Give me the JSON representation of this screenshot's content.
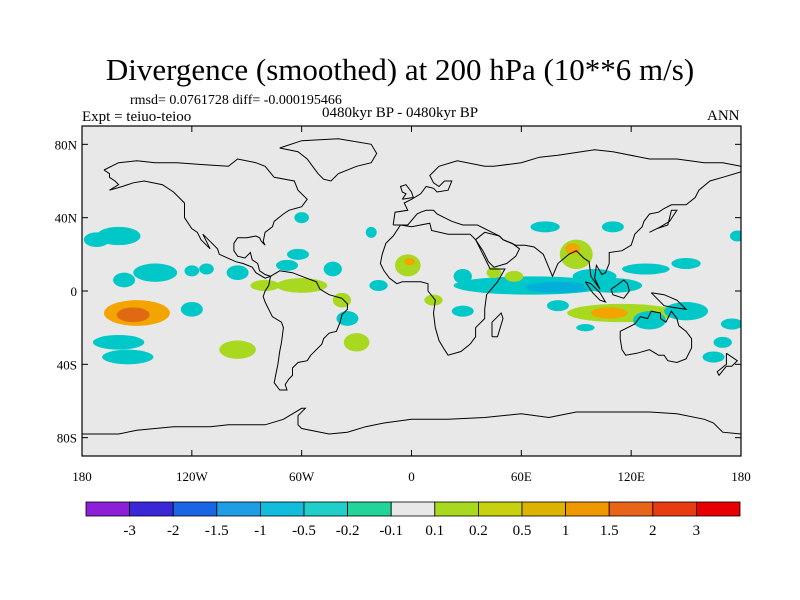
{
  "header": {
    "title": "Divergence (smoothed) at 200 hPa (10**6 m/s)",
    "stats": "rmsd= 0.0761728 diff= -0.000195466",
    "experiment": "Expt = teiuo-teioo",
    "period": "0480kyr BP - 0480kyr BP",
    "season": "ANN"
  },
  "map": {
    "background": "#e8e8e8",
    "coastline_color": "#000000",
    "lat_labels": [
      "80N",
      "40N",
      "0",
      "40S",
      "80S"
    ],
    "lon_labels": [
      "180",
      "120W",
      "60W",
      "0",
      "60E",
      "120E",
      "180"
    ],
    "features": [
      {
        "name": "north-america"
      },
      {
        "name": "south-america"
      },
      {
        "name": "greenland"
      },
      {
        "name": "africa"
      },
      {
        "name": "eurasia"
      },
      {
        "name": "australia"
      },
      {
        "name": "antarctica"
      },
      {
        "name": "madagascar"
      },
      {
        "name": "arabia"
      }
    ],
    "anomalies": [
      {
        "lon": -150,
        "lat": -12,
        "rx": 18,
        "ry": 7,
        "color": "#f4a400"
      },
      {
        "lon": -152,
        "lat": -13,
        "rx": 9,
        "ry": 4,
        "color": "#e06a14"
      },
      {
        "lon": -160,
        "lat": 30,
        "rx": 12,
        "ry": 5,
        "color": "#00c8c8"
      },
      {
        "lon": -172,
        "lat": 28,
        "rx": 7,
        "ry": 4,
        "color": "#00c8c8"
      },
      {
        "lon": -140,
        "lat": 10,
        "rx": 12,
        "ry": 5,
        "color": "#00c8c8"
      },
      {
        "lon": -157,
        "lat": 6,
        "rx": 6,
        "ry": 4,
        "color": "#00c8c8"
      },
      {
        "lon": -160,
        "lat": -28,
        "rx": 14,
        "ry": 4,
        "color": "#00c8c8"
      },
      {
        "lon": -155,
        "lat": -36,
        "rx": 14,
        "ry": 4,
        "color": "#00c8c8"
      },
      {
        "lon": -120,
        "lat": 11,
        "rx": 4,
        "ry": 3,
        "color": "#00c8c8"
      },
      {
        "lon": -112,
        "lat": 12,
        "rx": 4,
        "ry": 3,
        "color": "#00c8c8"
      },
      {
        "lon": -120,
        "lat": -10,
        "rx": 6,
        "ry": 4,
        "color": "#00c8c8"
      },
      {
        "lon": -95,
        "lat": -32,
        "rx": 10,
        "ry": 5,
        "color": "#a8d820"
      },
      {
        "lon": -95,
        "lat": 10,
        "rx": 6,
        "ry": 4,
        "color": "#00c8c8"
      },
      {
        "lon": -80,
        "lat": 3,
        "rx": 8,
        "ry": 3,
        "color": "#a8d820"
      },
      {
        "lon": -60,
        "lat": 3,
        "rx": 14,
        "ry": 4,
        "color": "#a8d820"
      },
      {
        "lon": -68,
        "lat": 14,
        "rx": 6,
        "ry": 3,
        "color": "#00c8c8"
      },
      {
        "lon": -62,
        "lat": 20,
        "rx": 6,
        "ry": 3,
        "color": "#00c8c8"
      },
      {
        "lon": -43,
        "lat": 12,
        "rx": 5,
        "ry": 4,
        "color": "#00c8c8"
      },
      {
        "lon": -38,
        "lat": -5,
        "rx": 5,
        "ry": 4,
        "color": "#a8d820"
      },
      {
        "lon": -35,
        "lat": -15,
        "rx": 6,
        "ry": 4,
        "color": "#00c8c8"
      },
      {
        "lon": -30,
        "lat": -28,
        "rx": 7,
        "ry": 5,
        "color": "#a8d820"
      },
      {
        "lon": -60,
        "lat": 40,
        "rx": 4,
        "ry": 3,
        "color": "#00c8c8"
      },
      {
        "lon": -22,
        "lat": 32,
        "rx": 3,
        "ry": 3,
        "color": "#00c8c8"
      },
      {
        "lon": -18,
        "lat": 3,
        "rx": 5,
        "ry": 3,
        "color": "#00c8c8"
      },
      {
        "lon": -2,
        "lat": 14,
        "rx": 7,
        "ry": 6,
        "color": "#a8d820"
      },
      {
        "lon": -1,
        "lat": 16,
        "rx": 3,
        "ry": 2,
        "color": "#f4a400"
      },
      {
        "lon": 12,
        "lat": -5,
        "rx": 5,
        "ry": 3,
        "color": "#a8d820"
      },
      {
        "lon": 28,
        "lat": 8,
        "rx": 5,
        "ry": 4,
        "color": "#00c8c8"
      },
      {
        "lon": 28,
        "lat": -11,
        "rx": 6,
        "ry": 3,
        "color": "#00c8c8"
      },
      {
        "lon": 65,
        "lat": 3,
        "rx": 42,
        "ry": 5,
        "color": "#00c8c8"
      },
      {
        "lon": 80,
        "lat": 2,
        "rx": 18,
        "ry": 3,
        "color": "#00b0d8"
      },
      {
        "lon": 56,
        "lat": 8,
        "rx": 5,
        "ry": 3,
        "color": "#a8d820"
      },
      {
        "lon": 45,
        "lat": 10,
        "rx": 4,
        "ry": 3,
        "color": "#a8d820"
      },
      {
        "lon": 100,
        "lat": 8,
        "rx": 12,
        "ry": 4,
        "color": "#00c8c8"
      },
      {
        "lon": 110,
        "lat": 3,
        "rx": 16,
        "ry": 4,
        "color": "#00c8c8"
      },
      {
        "lon": 90,
        "lat": 20,
        "rx": 9,
        "ry": 8,
        "color": "#a8d820"
      },
      {
        "lon": 88,
        "lat": 23,
        "rx": 4,
        "ry": 3,
        "color": "#f4a400"
      },
      {
        "lon": 73,
        "lat": 35,
        "rx": 8,
        "ry": 3,
        "color": "#00c8c8"
      },
      {
        "lon": 110,
        "lat": 35,
        "rx": 6,
        "ry": 3,
        "color": "#00c8c8"
      },
      {
        "lon": 128,
        "lat": 12,
        "rx": 13,
        "ry": 3,
        "color": "#00c8c8"
      },
      {
        "lon": 150,
        "lat": 15,
        "rx": 8,
        "ry": 3,
        "color": "#00c8c8"
      },
      {
        "lon": 178,
        "lat": 30,
        "rx": 4,
        "ry": 3,
        "color": "#00c8c8"
      },
      {
        "lon": 115,
        "lat": -12,
        "rx": 30,
        "ry": 5,
        "color": "#a8d820"
      },
      {
        "lon": 108,
        "lat": -12,
        "rx": 10,
        "ry": 3,
        "color": "#f4a400"
      },
      {
        "lon": 130,
        "lat": -16,
        "rx": 9,
        "ry": 5,
        "color": "#00c8c8"
      },
      {
        "lon": 150,
        "lat": -11,
        "rx": 12,
        "ry": 5,
        "color": "#00c8c8"
      },
      {
        "lon": 175,
        "lat": -18,
        "rx": 6,
        "ry": 3,
        "color": "#00c8c8"
      },
      {
        "lon": 170,
        "lat": -28,
        "rx": 5,
        "ry": 3,
        "color": "#00c8c8"
      },
      {
        "lon": 165,
        "lat": -36,
        "rx": 6,
        "ry": 3,
        "color": "#00c8c8"
      },
      {
        "lon": 80,
        "lat": -8,
        "rx": 6,
        "ry": 3,
        "color": "#00c8c8"
      },
      {
        "lon": 95,
        "lat": -20,
        "rx": 5,
        "ry": 2,
        "color": "#00c8c8"
      }
    ]
  },
  "colorbar": {
    "colors": [
      "#8c1fd8",
      "#3a28d8",
      "#1a64e6",
      "#1f9ee6",
      "#12bcdc",
      "#20d0c8",
      "#22d39a",
      "#e8e8e8",
      "#a8d820",
      "#c8d010",
      "#dcb400",
      "#f09800",
      "#e86418",
      "#e83c10",
      "#e80000"
    ],
    "labels": [
      "-3",
      "-2",
      "-1.5",
      "-1",
      "-0.5",
      "-0.2",
      "-0.1",
      "0.1",
      "0.2",
      "0.5",
      "1",
      "1.5",
      "2",
      "3"
    ]
  }
}
